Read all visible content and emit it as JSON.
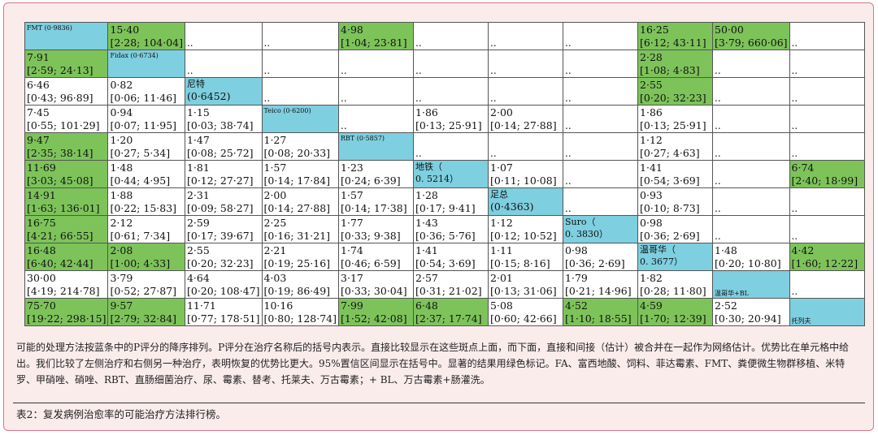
{
  "rows": [
    [
      {
        "t": "b",
        "a": "FMT (0·9836)"
      },
      {
        "t": "g",
        "a": "15·40",
        "b": "[2·28; 104·04]"
      },
      {
        "t": "d"
      },
      {
        "t": "d"
      },
      {
        "t": "g",
        "a": "4·98",
        "b": "[1·04; 23·81]"
      },
      {
        "t": "d"
      },
      {
        "t": "d"
      },
      {
        "t": "d"
      },
      {
        "t": "g",
        "a": "16·25",
        "b": "[6·12; 43·11]"
      },
      {
        "t": "g",
        "a": "50·00",
        "b": "[3·79; 660·06]"
      },
      {
        "t": "d"
      }
    ],
    [
      {
        "t": "g",
        "a": "7·91",
        "b": "[2·59; 24·13]"
      },
      {
        "t": "b",
        "a": "Fidax (0·6734)"
      },
      {
        "t": "d"
      },
      {
        "t": "d"
      },
      {
        "t": "d"
      },
      {
        "t": "d"
      },
      {
        "t": "d"
      },
      {
        "t": "d"
      },
      {
        "t": "g",
        "a": "2·28",
        "b": "[1·08; 4·83]"
      },
      {
        "t": "d"
      },
      {
        "t": "d"
      }
    ],
    [
      {
        "t": "w",
        "a": "6·46",
        "b": "[0·43; 96·89]"
      },
      {
        "t": "w",
        "a": "0·82",
        "b": "[0·06; 11·46]"
      },
      {
        "t": "b",
        "a": "尼特",
        "b": "(0·6452)",
        "big": true
      },
      {
        "t": "d"
      },
      {
        "t": "d"
      },
      {
        "t": "d"
      },
      {
        "t": "d"
      },
      {
        "t": "d"
      },
      {
        "t": "g",
        "a": "2·55",
        "b": "[0·20; 32·23]"
      },
      {
        "t": "d"
      },
      {
        "t": "d"
      }
    ],
    [
      {
        "t": "w",
        "a": "7·45",
        "b": "[0·55; 101·29]"
      },
      {
        "t": "w",
        "a": "0·94",
        "b": "[0·07; 11·95]"
      },
      {
        "t": "w",
        "a": "1·15",
        "b": "[0·03; 38·74]"
      },
      {
        "t": "b",
        "a": "Teico (0·6200)"
      },
      {
        "t": "d"
      },
      {
        "t": "w",
        "a": "1·86",
        "b": "[0·13; 25·91]"
      },
      {
        "t": "w",
        "a": "2·00",
        "b": "[0·14; 27·88]"
      },
      {
        "t": "d"
      },
      {
        "t": "w",
        "a": "1·86",
        "b": "[0·13; 25·91]"
      },
      {
        "t": "d"
      },
      {
        "t": "d"
      }
    ],
    [
      {
        "t": "g",
        "a": "9·47",
        "b": "[2·35; 38·14]"
      },
      {
        "t": "w",
        "a": "1·20",
        "b": "[0·27; 5·34]"
      },
      {
        "t": "w",
        "a": "1·47",
        "b": "[0·08; 25·72]"
      },
      {
        "t": "w",
        "a": "1·27",
        "b": "[0·08; 20·33]"
      },
      {
        "t": "b",
        "a": "RBT (0·5857)"
      },
      {
        "t": "d"
      },
      {
        "t": "d"
      },
      {
        "t": "d"
      },
      {
        "t": "w",
        "a": "1·12",
        "b": "[0·27; 4·63]"
      },
      {
        "t": "d"
      },
      {
        "t": "d"
      }
    ],
    [
      {
        "t": "g",
        "a": "11·69",
        "b": "[3·03; 45·08]"
      },
      {
        "t": "w",
        "a": "1·48",
        "b": "[0·44; 4·95]"
      },
      {
        "t": "w",
        "a": "1·81",
        "b": "[0·12; 27·27]"
      },
      {
        "t": "w",
        "a": "1·57",
        "b": "[0·14; 17·84]"
      },
      {
        "t": "w",
        "a": "1·23",
        "b": "[0·24; 6·39]"
      },
      {
        "t": "b",
        "a": "地铁（",
        "b": "0. 5214）",
        "big": true
      },
      {
        "t": "w",
        "a": "1·07",
        "b": "[0·11; 10·08]"
      },
      {
        "t": "d"
      },
      {
        "t": "w",
        "a": "1·41",
        "b": "[0·54; 3·69]"
      },
      {
        "t": "d"
      },
      {
        "t": "g",
        "a": "6·74",
        "b": "[2·40; 18·99]"
      }
    ],
    [
      {
        "t": "g",
        "a": "14·91",
        "b": "[1·63; 136·01]"
      },
      {
        "t": "w",
        "a": "1·88",
        "b": "[0·22; 15·83]"
      },
      {
        "t": "w",
        "a": "2·31",
        "b": "[0·09; 58·27]"
      },
      {
        "t": "w",
        "a": "2·00",
        "b": "[0·14; 27·88]"
      },
      {
        "t": "w",
        "a": "1·57",
        "b": "[0·14; 17·38]"
      },
      {
        "t": "w",
        "a": "1·28",
        "b": "[0·17; 9·41]"
      },
      {
        "t": "b",
        "a": "足总",
        "b": "(0·4363)",
        "big": true
      },
      {
        "t": "d"
      },
      {
        "t": "w",
        "a": "0·93",
        "b": "[0·10; 8·73]"
      },
      {
        "t": "d"
      },
      {
        "t": "d"
      }
    ],
    [
      {
        "t": "g",
        "a": "16·75",
        "b": "[4·21; 66·55]"
      },
      {
        "t": "w",
        "a": "2·12",
        "b": "[0·61; 7·34]"
      },
      {
        "t": "w",
        "a": "2·59",
        "b": "[0·17; 39·67]"
      },
      {
        "t": "w",
        "a": "2·25",
        "b": "[0·16; 31·21]"
      },
      {
        "t": "w",
        "a": "1·77",
        "b": "[0·33; 9·38]"
      },
      {
        "t": "w",
        "a": "1·43",
        "b": "[0·36; 5·76]"
      },
      {
        "t": "w",
        "a": "1·12",
        "b": "[0·12; 10·52]"
      },
      {
        "t": "b",
        "a": "Suro（",
        "b": "0. 3830）",
        "big": true
      },
      {
        "t": "w",
        "a": "0·98",
        "b": "[0·36; 2·69]"
      },
      {
        "t": "d"
      },
      {
        "t": "d"
      }
    ],
    [
      {
        "t": "g",
        "a": "16·48",
        "b": "[6·40; 42·44]"
      },
      {
        "t": "g",
        "a": "2·08",
        "b": "[1·00; 4·33]"
      },
      {
        "t": "w",
        "a": "2·55",
        "b": "[0·20; 32·23]"
      },
      {
        "t": "w",
        "a": "2·21",
        "b": "[0·19; 25·16]"
      },
      {
        "t": "w",
        "a": "1·74",
        "b": "[0·46; 6·59]"
      },
      {
        "t": "w",
        "a": "1·41",
        "b": "[0·54; 3·69]"
      },
      {
        "t": "w",
        "a": "1·11",
        "b": "[0·15; 8·16]"
      },
      {
        "t": "w",
        "a": "0·98",
        "b": "[0·36; 2·69]"
      },
      {
        "t": "b",
        "a": "温哥华（",
        "b": "0. 3677）",
        "big": true
      },
      {
        "t": "w",
        "a": "1·48",
        "b": "[0·20; 10·80]"
      },
      {
        "t": "g",
        "a": "4·42",
        "b": "[1·60; 12·22]"
      }
    ],
    [
      {
        "t": "w",
        "a": "30·00",
        "b": "[4·19; 214·78]"
      },
      {
        "t": "w",
        "a": "3·79",
        "b": "[0·52; 27·87]"
      },
      {
        "t": "w",
        "a": "4·64",
        "b": "[0·20; 108·47]"
      },
      {
        "t": "w",
        "a": "4·03",
        "b": "[0·19; 86·49]"
      },
      {
        "t": "w",
        "a": "3·17",
        "b": "[0·33; 30·04]"
      },
      {
        "t": "w",
        "a": "2·57",
        "b": "[0·31; 21·02]"
      },
      {
        "t": "w",
        "a": "2·01",
        "b": "[0·13; 31·06]"
      },
      {
        "t": "w",
        "a": "1·79",
        "b": "[0·21; 14·96]"
      },
      {
        "t": "w",
        "a": "1·82",
        "b": "[0·28; 11·80]"
      },
      {
        "t": "bb",
        "a": "温哥华+BL"
      },
      {
        "t": "d"
      }
    ],
    [
      {
        "t": "g",
        "a": "75·70",
        "b": "[19·22; 298·15]"
      },
      {
        "t": "g",
        "a": "9·57",
        "b": "[2·79; 32·84]"
      },
      {
        "t": "w",
        "a": "11·71",
        "b": "[0·77; 178·51]"
      },
      {
        "t": "w",
        "a": "10·16",
        "b": "[0·80; 128·74]"
      },
      {
        "t": "g",
        "a": "7·99",
        "b": "[1·52; 42·08]"
      },
      {
        "t": "g",
        "a": "6·48",
        "b": "[2·37; 17·74]"
      },
      {
        "t": "w",
        "a": "5·08",
        "b": "[0·60; 42·66]"
      },
      {
        "t": "g",
        "a": "4·52",
        "b": "[1·10; 18·55]"
      },
      {
        "t": "g",
        "a": "4·59",
        "b": "[1·70; 12·39]"
      },
      {
        "t": "w",
        "a": "2·52",
        "b": "[0·30; 20·94]"
      },
      {
        "t": "bb",
        "a": "托列夫"
      }
    ]
  ],
  "dots": "..",
  "caption": {
    "text": "可能的处理方法按蓝条中的P评分的降序排列。P评分在治疗名称后的括号内表示。直接比较显示在这些斑点上面，而下面，直接和间接（估计）被合并在一起作为网络估计。优势比在单元格中给出。我们比较了左侧治疗和右侧另一种治疗，表明恢复的优势比更大。95%置信区间显示在括号中。显著的结果用绿色标记。FA、富西地酸、饲料、菲达霉素、FMT、粪便微生物群移植、米特罗、甲硝唑、硝唑、RBT、直肠细菌治疗、尿、霉素、替考、托莱夫、万古霉素；+ BL、万古霉素+肠灌洗。"
  },
  "table_title": "表2：复发病例治愈率的可能治疗方法排行榜。",
  "colors": {
    "green": "#7dc35a",
    "blue": "#7ecfe0",
    "frame_border": "#d8768e",
    "frame_bg": "#fbecec"
  }
}
